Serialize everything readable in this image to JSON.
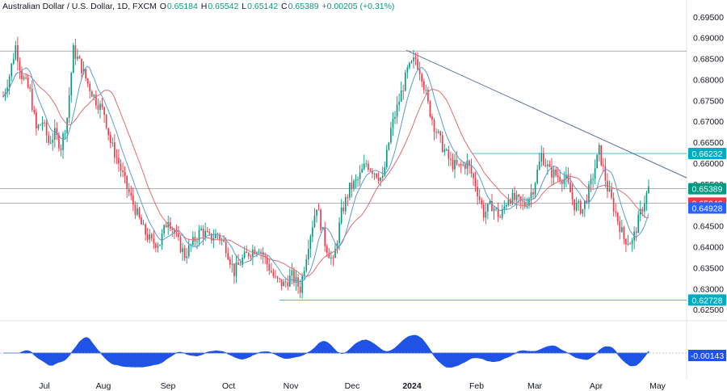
{
  "header": {
    "symbol": "Australian Dollar / U.S. Dollar, 1D, FXCM",
    "open_label": "O",
    "open_value": "0.65184",
    "high_label": "H",
    "high_value": "0.65542",
    "low_label": "L",
    "low_value": "0.65142",
    "close_label": "C",
    "close_value": "0.65389",
    "change_value": "+0.00205 (+0.31%)"
  },
  "colors": {
    "up": "#089981",
    "down": "#f23645",
    "ma_fast": "#5b9bd5",
    "ma_slow": "#e06c75",
    "level_line": "#00acc1",
    "trend_line": "#5d6f9c",
    "oscillator": "#1e53e5",
    "grid_text": "#131722"
  },
  "chart_data": {
    "type": "candlestick",
    "x_tick_labels": [
      "Jul",
      "Aug",
      "Sep",
      "Oct",
      "Nov",
      "Dec",
      "2024",
      "Feb",
      "Mar",
      "Apr",
      "May"
    ],
    "y_tick_labels": [
      "0.69500",
      "0.69000",
      "0.68500",
      "0.68000",
      "0.67500",
      "0.67000",
      "0.66500",
      "0.66000",
      "0.65500",
      "0.65000",
      "0.64500",
      "0.64000",
      "0.63500",
      "0.63000",
      "0.62500"
    ],
    "ylim": [
      0.6233,
      0.6967
    ],
    "candle_count": 210,
    "anchors": [
      [
        0,
        0.676
      ],
      [
        3,
        0.681
      ],
      [
        6,
        0.688
      ],
      [
        9,
        0.681
      ],
      [
        13,
        0.677
      ],
      [
        16,
        0.668
      ],
      [
        19,
        0.67
      ],
      [
        22,
        0.665
      ],
      [
        25,
        0.667
      ],
      [
        28,
        0.664
      ],
      [
        31,
        0.671
      ],
      [
        34,
        0.687
      ],
      [
        37,
        0.684
      ],
      [
        41,
        0.679
      ],
      [
        45,
        0.675
      ],
      [
        49,
        0.672
      ],
      [
        52,
        0.665
      ],
      [
        56,
        0.66
      ],
      [
        60,
        0.654
      ],
      [
        64,
        0.649
      ],
      [
        68,
        0.644
      ],
      [
        72,
        0.641
      ],
      [
        76,
        0.641
      ],
      [
        80,
        0.647
      ],
      [
        84,
        0.642
      ],
      [
        88,
        0.638
      ],
      [
        92,
        0.641
      ],
      [
        96,
        0.644
      ],
      [
        100,
        0.642
      ],
      [
        104,
        0.643
      ],
      [
        108,
        0.64
      ],
      [
        112,
        0.634
      ],
      [
        116,
        0.637
      ],
      [
        120,
        0.639
      ],
      [
        124,
        0.64
      ],
      [
        128,
        0.636
      ],
      [
        132,
        0.632
      ],
      [
        136,
        0.631
      ],
      [
        140,
        0.633
      ],
      [
        144,
        0.63
      ],
      [
        148,
        0.641
      ],
      [
        152,
        0.65
      ],
      [
        156,
        0.641
      ],
      [
        160,
        0.636
      ],
      [
        164,
        0.648
      ],
      [
        168,
        0.654
      ],
      [
        172,
        0.656
      ],
      [
        176,
        0.66
      ],
      [
        180,
        0.658
      ],
      [
        184,
        0.656
      ],
      [
        188,
        0.668
      ],
      [
        192,
        0.675
      ],
      [
        196,
        0.682
      ],
      [
        200,
        0.685
      ],
      [
        203,
        0.681
      ],
      [
        206,
        0.674
      ],
      [
        209,
        0.669
      ]
    ],
    "second_leg_anchors": [
      [
        0,
        0.669
      ],
      [
        4,
        0.664
      ],
      [
        8,
        0.66
      ],
      [
        12,
        0.659
      ],
      [
        16,
        0.66
      ],
      [
        20,
        0.655
      ],
      [
        24,
        0.648
      ],
      [
        28,
        0.65
      ],
      [
        32,
        0.647
      ],
      [
        36,
        0.652
      ],
      [
        40,
        0.651
      ],
      [
        44,
        0.65
      ],
      [
        48,
        0.654
      ],
      [
        52,
        0.662
      ],
      [
        56,
        0.658
      ],
      [
        60,
        0.657
      ],
      [
        64,
        0.656
      ],
      [
        68,
        0.65
      ],
      [
        72,
        0.649
      ],
      [
        76,
        0.655
      ],
      [
        80,
        0.663
      ],
      [
        84,
        0.654
      ],
      [
        88,
        0.648
      ],
      [
        92,
        0.642
      ],
      [
        96,
        0.641
      ],
      [
        100,
        0.648
      ],
      [
        104,
        0.654
      ]
    ],
    "levels": [
      {
        "price": 0.6868,
        "label": ""
      },
      {
        "price": 0.66232,
        "label": "0.66232"
      },
      {
        "price": 0.65389,
        "label": "0.65389"
      },
      {
        "price": 0.65046,
        "label": "0.65046"
      },
      {
        "price": 0.62728,
        "label": "0.62728"
      }
    ],
    "ma_fast_value": "0.64928",
    "trendline": {
      "from": [
        0.687,
        "Dec-end"
      ],
      "to": [
        0.6565,
        "May"
      ]
    },
    "oscillator": {
      "latest_value": "-0.00143"
    }
  }
}
